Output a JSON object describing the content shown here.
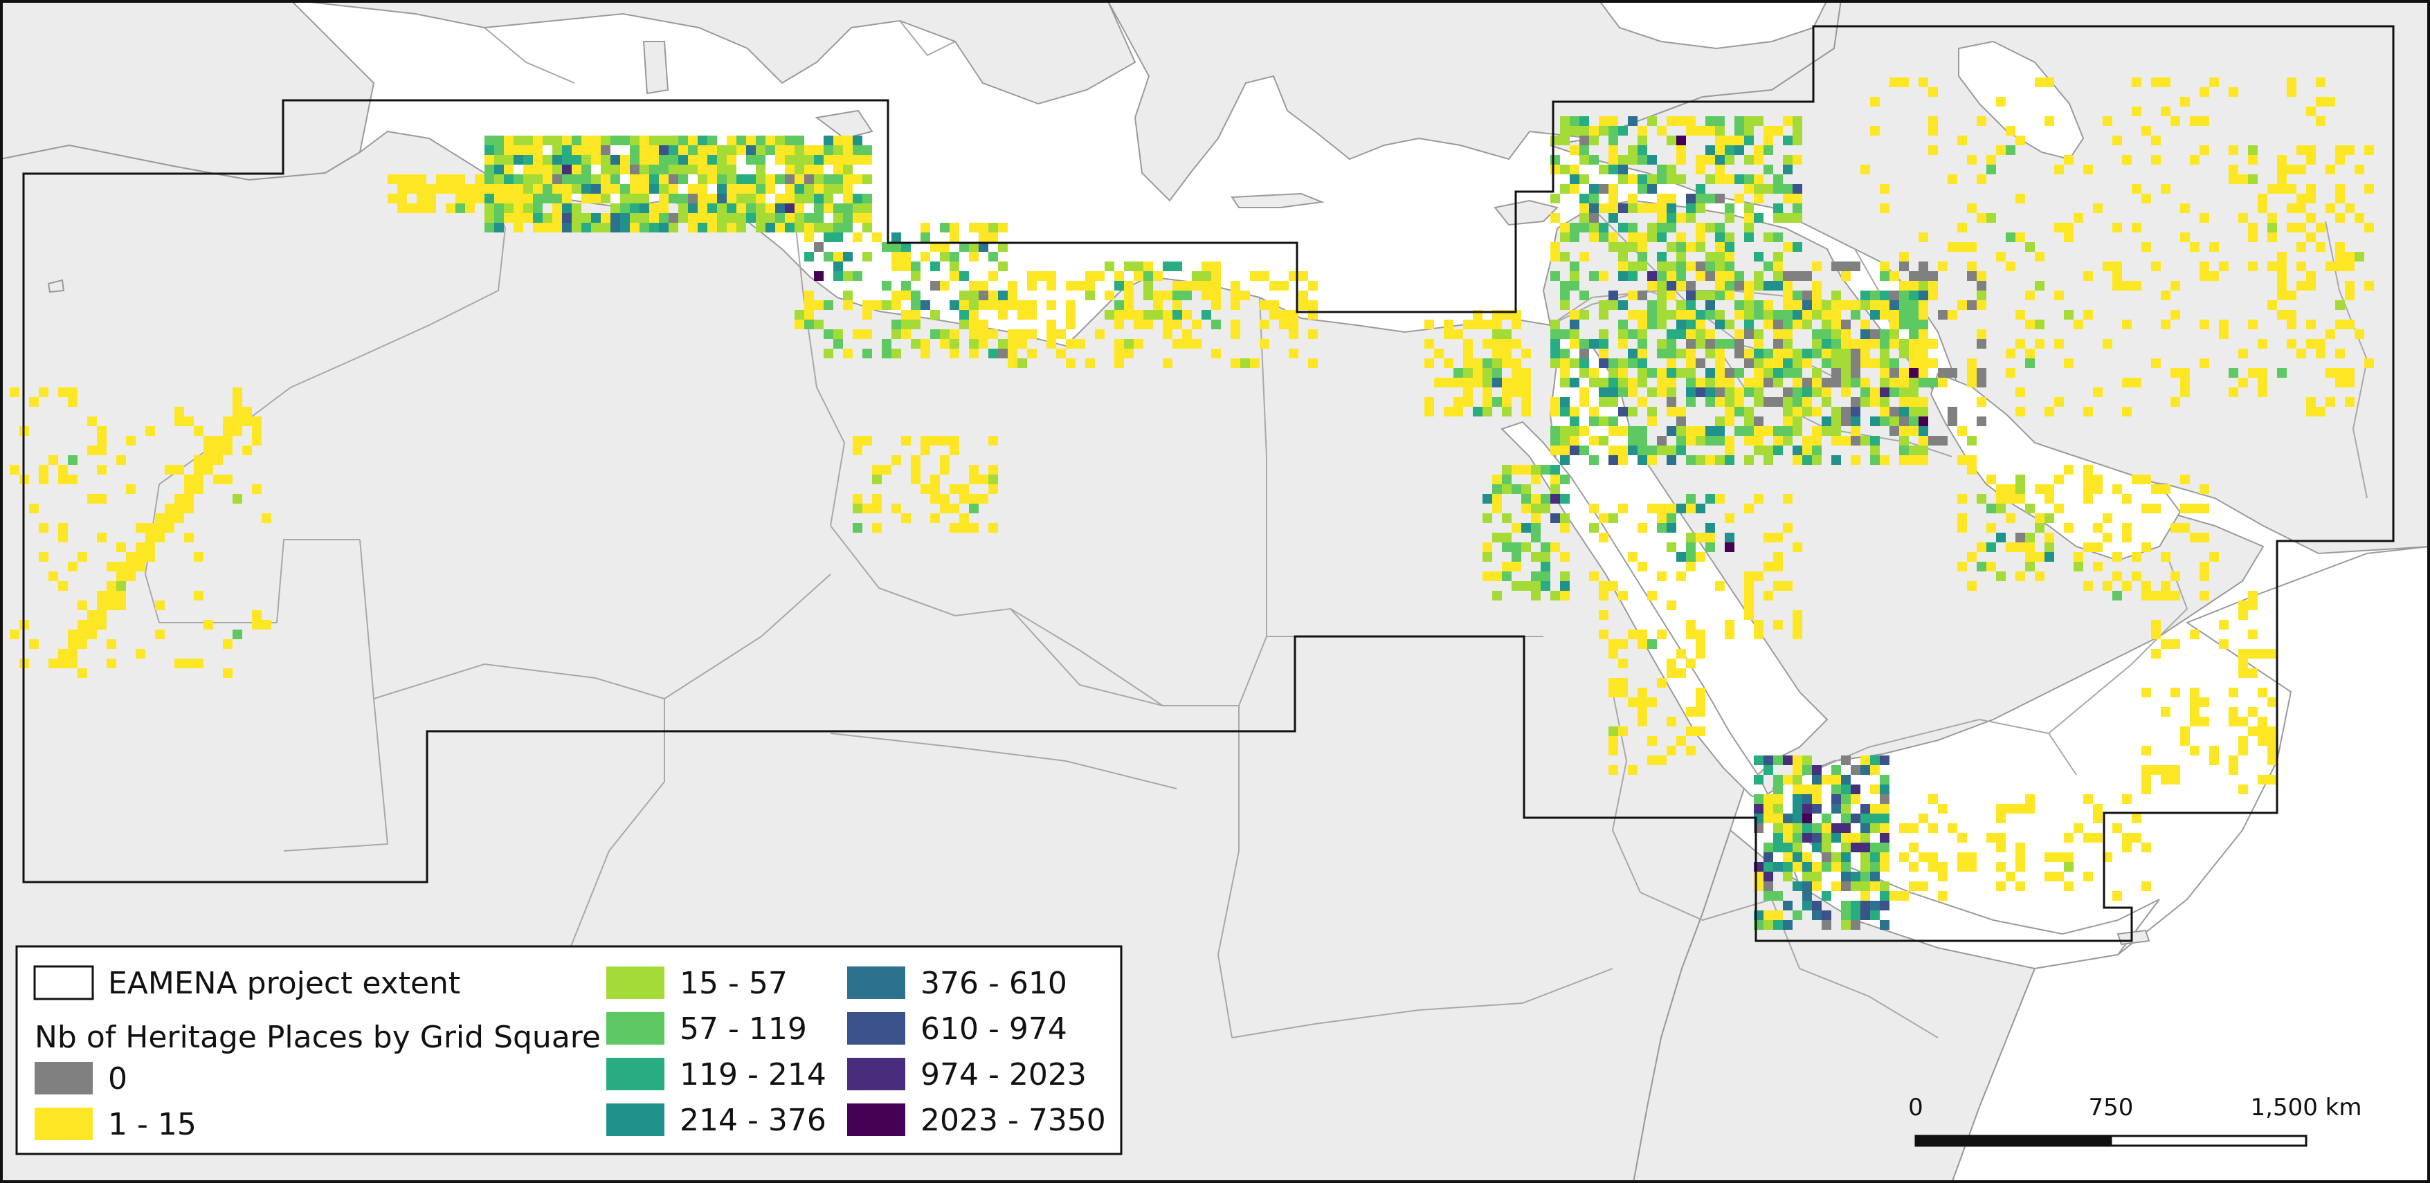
{
  "map": {
    "colors": {
      "sea": "#ffffff",
      "land": "#ececec",
      "border": "#a8a8a8",
      "coast": "#9a9a9a",
      "extent_outline": "#111111",
      "frame": "#111111"
    },
    "classes": [
      {
        "label": "0",
        "color": "#808080",
        "min": 0,
        "max": 0
      },
      {
        "label": "1 - 15",
        "color": "#fde725",
        "min": 1,
        "max": 15
      },
      {
        "label": "15 - 57",
        "color": "#a5db36",
        "min": 15,
        "max": 57
      },
      {
        "label": "57 - 119",
        "color": "#5ec962",
        "min": 57,
        "max": 119
      },
      {
        "label": "119 - 214",
        "color": "#27ad81",
        "min": 119,
        "max": 214
      },
      {
        "label": "214 - 376",
        "color": "#21918c",
        "min": 214,
        "max": 376
      },
      {
        "label": "376 - 610",
        "color": "#2c728e",
        "min": 376,
        "max": 610
      },
      {
        "label": "610 - 974",
        "color": "#3b528b",
        "min": 610,
        "max": 974
      },
      {
        "label": "974 - 2023",
        "color": "#472d7b",
        "min": 974,
        "max": 2023
      },
      {
        "label": "2023 - 7350",
        "color": "#440154",
        "min": 2023,
        "max": 7350
      }
    ]
  },
  "legend": {
    "extent_label": "EAMENA project extent",
    "title": "Nb of Heritage Places by Grid Square"
  },
  "scalebar": {
    "ticks": [
      "0",
      "750",
      "1,500 km"
    ]
  }
}
